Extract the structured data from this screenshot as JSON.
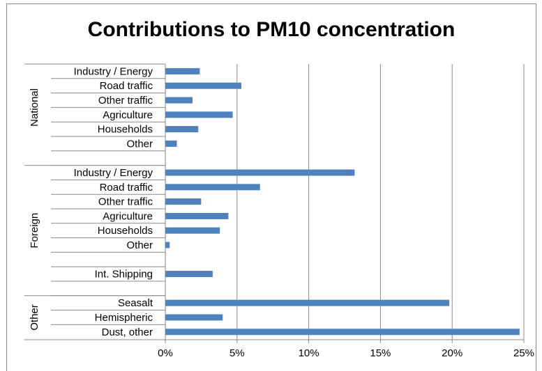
{
  "chart_data": {
    "type": "bar",
    "orientation": "horizontal",
    "title": "Contributions to PM10 concentration",
    "xlabel": "",
    "ylabel": "",
    "xlim": [
      0,
      25
    ],
    "x_tick_labels": [
      "0%",
      "5%",
      "10%",
      "15%",
      "20%",
      "25%"
    ],
    "grid": true,
    "legend": "none",
    "bar_color": "#4f81bd",
    "groups": [
      {
        "name": "National",
        "labels": [
          "Industry / Energy",
          "Road traffic",
          "Other traffic",
          "Agriculture",
          "Households",
          "Other"
        ]
      },
      {
        "name": "Foreign",
        "labels": [
          "Industry / Energy",
          "Road traffic",
          "Other traffic",
          "Agriculture",
          "Households",
          "Other",
          "",
          "Int. Shipping",
          ""
        ]
      },
      {
        "name": "Other",
        "labels": [
          "Seasalt",
          "Hemispheric",
          "Dust, other"
        ]
      }
    ],
    "categories": [
      "Industry / Energy",
      "Road traffic",
      "Other traffic",
      "Agriculture",
      "Households",
      "Other",
      "",
      "Industry / Energy",
      "Road traffic",
      "Other traffic",
      "Agriculture",
      "Households",
      "Other",
      "",
      "Int. Shipping",
      "",
      "Seasalt",
      "Hemispheric",
      "Dust, other"
    ],
    "values": [
      2.4,
      5.3,
      1.9,
      4.7,
      2.3,
      0.8,
      null,
      13.2,
      6.6,
      2.5,
      4.4,
      3.8,
      0.3,
      null,
      3.3,
      null,
      19.8,
      4.0,
      24.7
    ]
  }
}
